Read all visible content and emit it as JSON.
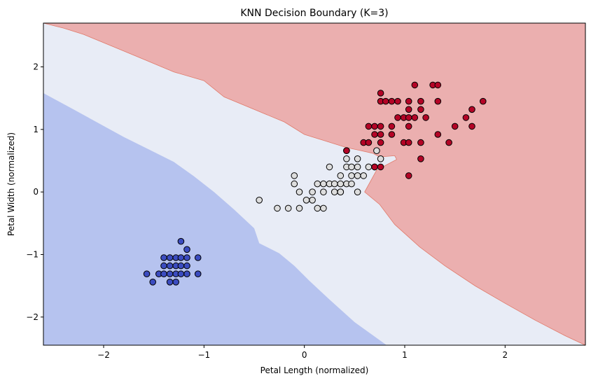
{
  "chart_data": {
    "type": "scatter",
    "title": "KNN Decision Boundary (K=3)",
    "xlabel": "Petal Length (normalized)",
    "ylabel": "Petal Width (normalized)",
    "xlim": [
      -2.6,
      2.8
    ],
    "ylim": [
      -2.45,
      2.7
    ],
    "xticks": [
      -2,
      -1,
      0,
      1,
      2
    ],
    "yticks": [
      -2,
      -1,
      0,
      1,
      2
    ],
    "grid": false,
    "legend": "none",
    "colors": {
      "class0_point": "#3b4cc0",
      "class1_point": "#dddddd",
      "class2_point": "#b40426",
      "class0_region": "#b6c3ef",
      "class1_region": "#e8ecf6",
      "class2_region": "#ebafaf"
    },
    "regions": [
      {
        "class": 0,
        "polygon": [
          [
            -2.6,
            -2.45
          ],
          [
            -2.6,
            1.58
          ],
          [
            -2.3,
            1.32
          ],
          [
            -1.8,
            0.88
          ],
          [
            -1.55,
            0.68
          ],
          [
            -1.3,
            0.48
          ],
          [
            -1.1,
            0.25
          ],
          [
            -0.9,
            0.0
          ],
          [
            -0.7,
            -0.28
          ],
          [
            -0.5,
            -0.58
          ],
          [
            -0.45,
            -0.82
          ],
          [
            -0.25,
            -0.98
          ],
          [
            -0.1,
            -1.18
          ],
          [
            0.05,
            -1.42
          ],
          [
            0.25,
            -1.72
          ],
          [
            0.5,
            -2.08
          ],
          [
            0.82,
            -2.45
          ]
        ]
      },
      {
        "class": 2,
        "polygon": [
          [
            -2.6,
            2.7
          ],
          [
            2.8,
            2.7
          ],
          [
            2.8,
            -2.45
          ],
          [
            2.6,
            -2.3
          ],
          [
            2.3,
            -2.05
          ],
          [
            2.0,
            -1.78
          ],
          [
            1.7,
            -1.5
          ],
          [
            1.4,
            -1.18
          ],
          [
            1.15,
            -0.88
          ],
          [
            0.9,
            -0.52
          ],
          [
            0.75,
            -0.2
          ],
          [
            0.6,
            0.0
          ],
          [
            0.72,
            0.35
          ],
          [
            0.92,
            0.52
          ],
          [
            0.9,
            0.58
          ],
          [
            0.75,
            0.56
          ],
          [
            0.68,
            0.62
          ],
          [
            0.45,
            0.7
          ],
          [
            0.4,
            0.72
          ],
          [
            0.2,
            0.82
          ],
          [
            0.0,
            0.92
          ],
          [
            -0.2,
            1.12
          ],
          [
            -0.5,
            1.32
          ],
          [
            -0.8,
            1.52
          ],
          [
            -1.0,
            1.78
          ],
          [
            -1.3,
            1.92
          ],
          [
            -1.6,
            2.12
          ],
          [
            -1.9,
            2.32
          ],
          [
            -2.2,
            2.52
          ],
          [
            -2.4,
            2.62
          ]
        ]
      }
    ],
    "series": [
      {
        "class": 0,
        "points": [
          [
            -1.23,
            -0.79
          ],
          [
            -1.17,
            -0.92
          ],
          [
            -1.34,
            -1.05
          ],
          [
            -1.28,
            -1.05
          ],
          [
            -1.23,
            -1.05
          ],
          [
            -1.17,
            -1.05
          ],
          [
            -1.06,
            -1.05
          ],
          [
            -1.4,
            -1.05
          ],
          [
            -1.4,
            -1.18
          ],
          [
            -1.34,
            -1.18
          ],
          [
            -1.28,
            -1.18
          ],
          [
            -1.23,
            -1.18
          ],
          [
            -1.17,
            -1.18
          ],
          [
            -1.57,
            -1.31
          ],
          [
            -1.45,
            -1.31
          ],
          [
            -1.4,
            -1.31
          ],
          [
            -1.34,
            -1.31
          ],
          [
            -1.28,
            -1.31
          ],
          [
            -1.23,
            -1.31
          ],
          [
            -1.17,
            -1.31
          ],
          [
            -1.06,
            -1.31
          ],
          [
            -1.51,
            -1.44
          ],
          [
            -1.34,
            -1.44
          ],
          [
            -1.28,
            -1.44
          ]
        ]
      },
      {
        "class": 1,
        "points": [
          [
            0.42,
            0.66
          ],
          [
            0.53,
            0.53
          ],
          [
            0.76,
            0.53
          ],
          [
            0.42,
            0.53
          ],
          [
            0.25,
            0.4
          ],
          [
            0.42,
            0.4
          ],
          [
            0.47,
            0.4
          ],
          [
            0.53,
            0.4
          ],
          [
            0.64,
            0.4
          ],
          [
            0.7,
            0.4
          ],
          [
            -0.1,
            0.26
          ],
          [
            0.36,
            0.26
          ],
          [
            0.47,
            0.26
          ],
          [
            0.53,
            0.26
          ],
          [
            0.59,
            0.26
          ],
          [
            -0.1,
            0.13
          ],
          [
            0.13,
            0.13
          ],
          [
            0.19,
            0.13
          ],
          [
            0.25,
            0.13
          ],
          [
            0.3,
            0.13
          ],
          [
            0.36,
            0.13
          ],
          [
            0.42,
            0.13
          ],
          [
            0.47,
            0.13
          ],
          [
            -0.05,
            0.0
          ],
          [
            0.08,
            0.0
          ],
          [
            0.19,
            0.0
          ],
          [
            0.3,
            0.0
          ],
          [
            0.36,
            0.0
          ],
          [
            0.53,
            0.0
          ],
          [
            -0.45,
            -0.13
          ],
          [
            0.02,
            -0.13
          ],
          [
            0.08,
            -0.13
          ],
          [
            -0.27,
            -0.26
          ],
          [
            -0.16,
            -0.26
          ],
          [
            -0.05,
            -0.26
          ],
          [
            0.13,
            -0.26
          ],
          [
            0.19,
            -0.26
          ],
          [
            0.36,
            0.0
          ],
          [
            0.72,
            0.66
          ]
        ]
      },
      {
        "class": 2,
        "points": [
          [
            0.76,
            1.58
          ],
          [
            1.1,
            1.71
          ],
          [
            1.28,
            1.71
          ],
          [
            1.33,
            1.71
          ],
          [
            0.76,
            1.45
          ],
          [
            0.81,
            1.45
          ],
          [
            0.87,
            1.45
          ],
          [
            0.93,
            1.45
          ],
          [
            1.04,
            1.45
          ],
          [
            1.16,
            1.45
          ],
          [
            1.33,
            1.45
          ],
          [
            1.78,
            1.45
          ],
          [
            1.04,
            1.32
          ],
          [
            1.16,
            1.32
          ],
          [
            1.67,
            1.32
          ],
          [
            0.93,
            1.19
          ],
          [
            0.99,
            1.19
          ],
          [
            1.04,
            1.19
          ],
          [
            1.1,
            1.19
          ],
          [
            1.21,
            1.19
          ],
          [
            1.61,
            1.19
          ],
          [
            0.64,
            1.05
          ],
          [
            0.7,
            1.05
          ],
          [
            0.76,
            1.05
          ],
          [
            0.87,
            1.05
          ],
          [
            1.04,
            1.05
          ],
          [
            1.5,
            1.05
          ],
          [
            1.67,
            1.05
          ],
          [
            0.7,
            0.92
          ],
          [
            0.76,
            0.92
          ],
          [
            0.87,
            0.92
          ],
          [
            1.33,
            0.92
          ],
          [
            0.59,
            0.79
          ],
          [
            0.64,
            0.79
          ],
          [
            0.76,
            0.79
          ],
          [
            0.99,
            0.79
          ],
          [
            1.04,
            0.79
          ],
          [
            1.16,
            0.79
          ],
          [
            1.44,
            0.79
          ],
          [
            0.42,
            0.66
          ],
          [
            1.16,
            0.53
          ],
          [
            0.7,
            0.4
          ],
          [
            0.76,
            0.4
          ],
          [
            1.04,
            0.26
          ]
        ]
      }
    ]
  }
}
